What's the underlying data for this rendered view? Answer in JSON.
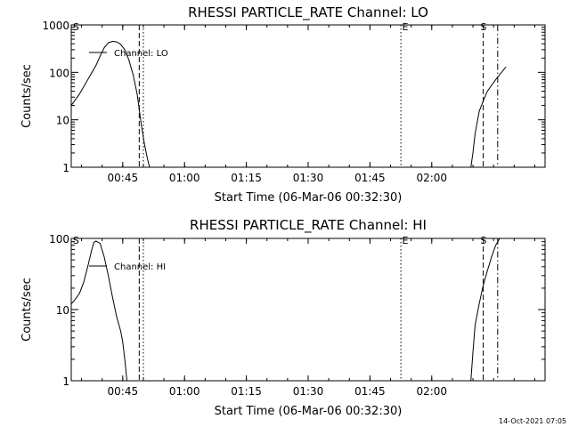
{
  "timestamp": "14-Oct-2021 07:05",
  "chart_data": [
    {
      "type": "line",
      "title": "RHESSI PARTICLE_RATE Channel: LO",
      "xlabel": "Start Time (06-Mar-06 00:32:30)",
      "ylabel": "Counts/sec",
      "x_unit": "minutes after 00:32:30",
      "xlim": [
        0,
        115
      ],
      "ylim": [
        1,
        1000
      ],
      "yscale": "log",
      "x_ticks": [
        {
          "x": 12.5,
          "label": "00:45"
        },
        {
          "x": 27.5,
          "label": "01:00"
        },
        {
          "x": 42.5,
          "label": "01:15"
        },
        {
          "x": 57.5,
          "label": "01:30"
        },
        {
          "x": 72.5,
          "label": "01:45"
        },
        {
          "x": 87.5,
          "label": "02:00"
        }
      ],
      "y_ticks": [
        {
          "y": 1,
          "label": "1"
        },
        {
          "y": 10,
          "label": "10"
        },
        {
          "y": 100,
          "label": "100"
        },
        {
          "y": 1000,
          "label": "1000"
        }
      ],
      "legend": "Channel: LO",
      "series": [
        {
          "name": "Channel: LO",
          "segments": [
            [
              [
                0,
                20
              ],
              [
                2,
                35
              ],
              [
                4,
                70
              ],
              [
                6,
                140
              ],
              [
                7,
                220
              ],
              [
                8,
                330
              ],
              [
                9,
                420
              ],
              [
                10,
                450
              ],
              [
                11,
                440
              ],
              [
                12,
                390
              ],
              [
                13,
                300
              ],
              [
                14,
                180
              ],
              [
                15,
                90
              ],
              [
                16,
                35
              ],
              [
                17,
                8
              ],
              [
                17.8,
                3
              ],
              [
                18.5,
                1.5
              ],
              [
                19,
                1
              ]
            ],
            [
              [
                97,
                1
              ],
              [
                97.5,
                2
              ],
              [
                98,
                5
              ],
              [
                99,
                15
              ],
              [
                100,
                25
              ],
              [
                101,
                40
              ],
              [
                103,
                70
              ],
              [
                105,
                115
              ],
              [
                105.5,
                130
              ]
            ]
          ]
        }
      ],
      "vlines": [
        {
          "x": 16.5,
          "style": "dashed"
        },
        {
          "x": 17.5,
          "style": "dotted"
        },
        {
          "x": 80,
          "style": "dotted"
        },
        {
          "x": 100,
          "style": "dashed"
        },
        {
          "x": 103.5,
          "style": "dashdot"
        }
      ],
      "markers": [
        {
          "x": 0.4,
          "label": "S"
        },
        {
          "x": 80.3,
          "label": "E"
        },
        {
          "x": 99.3,
          "label": "S"
        }
      ]
    },
    {
      "type": "line",
      "title": "RHESSI PARTICLE_RATE Channel: HI",
      "xlabel": "Start Time (06-Mar-06 00:32:30)",
      "ylabel": "Counts/sec",
      "x_unit": "minutes after 00:32:30",
      "xlim": [
        0,
        115
      ],
      "ylim": [
        1,
        100
      ],
      "yscale": "log",
      "x_ticks": [
        {
          "x": 12.5,
          "label": "00:45"
        },
        {
          "x": 27.5,
          "label": "01:00"
        },
        {
          "x": 42.5,
          "label": "01:15"
        },
        {
          "x": 57.5,
          "label": "01:30"
        },
        {
          "x": 72.5,
          "label": "01:45"
        },
        {
          "x": 87.5,
          "label": "02:00"
        }
      ],
      "y_ticks": [
        {
          "y": 1,
          "label": "1"
        },
        {
          "y": 10,
          "label": "10"
        },
        {
          "y": 100,
          "label": "100"
        }
      ],
      "legend": "Channel: HI",
      "series": [
        {
          "name": "Channel: HI",
          "segments": [
            [
              [
                0,
                12
              ],
              [
                1,
                14
              ],
              [
                2,
                17
              ],
              [
                3,
                24
              ],
              [
                4,
                40
              ],
              [
                5,
                70
              ],
              [
                5.5,
                88
              ],
              [
                6,
                92
              ],
              [
                7,
                85
              ],
              [
                8,
                55
              ],
              [
                9,
                30
              ],
              [
                10,
                15
              ],
              [
                11,
                8
              ],
              [
                12,
                5
              ],
              [
                12.5,
                3.5
              ],
              [
                13,
                2
              ],
              [
                13.5,
                1
              ]
            ],
            [
              [
                97,
                1
              ],
              [
                97.5,
                2.5
              ],
              [
                98,
                6
              ],
              [
                99,
                12
              ],
              [
                100,
                22
              ],
              [
                101,
                35
              ],
              [
                102,
                55
              ],
              [
                103,
                80
              ],
              [
                104,
                100
              ]
            ]
          ]
        }
      ],
      "vlines": [
        {
          "x": 16.5,
          "style": "dashed"
        },
        {
          "x": 17.5,
          "style": "dotted"
        },
        {
          "x": 80,
          "style": "dotted"
        },
        {
          "x": 100,
          "style": "dashed"
        },
        {
          "x": 103.5,
          "style": "dashdot"
        }
      ],
      "markers": [
        {
          "x": 0.4,
          "label": "S"
        },
        {
          "x": 80.3,
          "label": "E"
        },
        {
          "x": 99.3,
          "label": "S"
        }
      ]
    }
  ]
}
